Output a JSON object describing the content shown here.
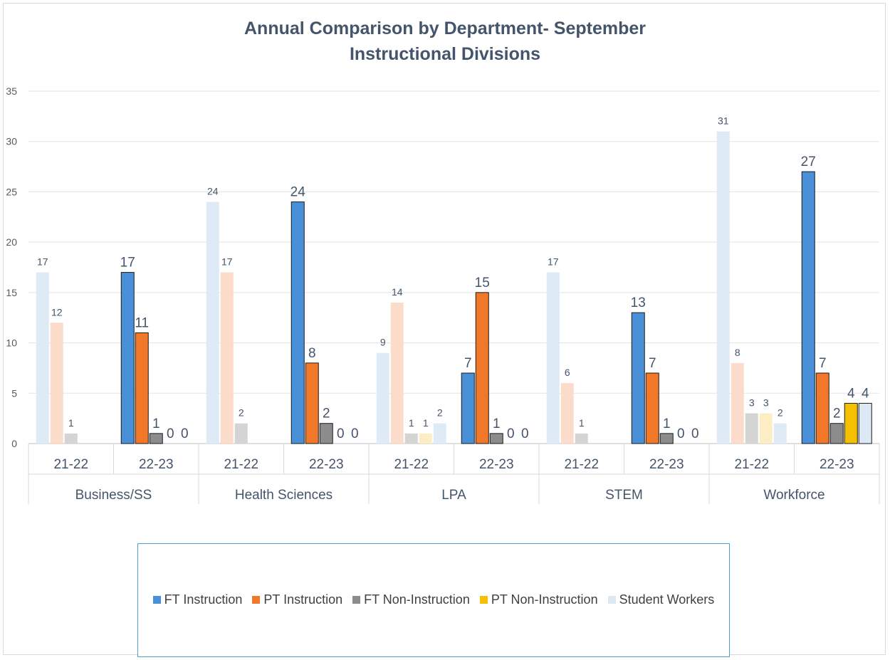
{
  "chart_data": {
    "type": "bar",
    "title": "Annual Comparison by Department- September",
    "subtitle": "Instructional Divisions",
    "ylim": [
      0,
      35
    ],
    "yticks": [
      0,
      5,
      10,
      15,
      20,
      25,
      30,
      35
    ],
    "grid": true,
    "legend_position": "bottom",
    "departments": [
      "Business/SS",
      "Health Sciences",
      "LPA",
      "STEM",
      "Workforce"
    ],
    "years": [
      "21-22",
      "22-23"
    ],
    "categories": [
      "Business/SS 21-22",
      "Business/SS 22-23",
      "Health Sciences 21-22",
      "Health Sciences 22-23",
      "LPA 21-22",
      "LPA 22-23",
      "STEM 21-22",
      "STEM 22-23",
      "Workforce 21-22",
      "Workforce 22-23"
    ],
    "series": [
      {
        "name": "FT Instruction",
        "color": "#4a90d9",
        "values": [
          null,
          17,
          null,
          24,
          null,
          7,
          null,
          13,
          null,
          27
        ]
      },
      {
        "name": "PT Instruction",
        "color": "#f07828",
        "values": [
          null,
          11,
          null,
          8,
          null,
          15,
          null,
          7,
          null,
          7
        ]
      },
      {
        "name": "FT Non-Instruction",
        "color": "#8c8c8c",
        "values": [
          1,
          1,
          2,
          2,
          1,
          1,
          1,
          1,
          3,
          2
        ]
      },
      {
        "name": "PT Non-Instruction",
        "color": "#f5c000",
        "values": [
          null,
          0,
          null,
          0,
          1,
          0,
          null,
          0,
          3,
          4
        ]
      },
      {
        "name": "Student Workers",
        "color": "#dce9f5",
        "values": [
          null,
          0,
          null,
          0,
          2,
          0,
          null,
          0,
          2,
          4
        ]
      }
    ],
    "faded_series_21_22": [
      {
        "name": "FT Instruction",
        "values": [
          17,
          24,
          9,
          17,
          31
        ]
      },
      {
        "name": "PT Instruction",
        "values": [
          12,
          17,
          14,
          6,
          8
        ]
      }
    ],
    "colors": {
      "ft_instruction": "#4a90d9",
      "pt_instruction": "#f07828",
      "ft_non_instruction": "#8c8c8c",
      "pt_non_instruction": "#f5c000",
      "student_workers": "#dce9f5",
      "faded_blue": "#deeaf6",
      "faded_orange": "#fbdccb",
      "faded_gray": "#d4d4d4",
      "faded_yellow": "#fdedc4",
      "text": "#44546a"
    }
  },
  "legend": {
    "items": [
      {
        "label": "FT Instruction",
        "color": "#4a90d9"
      },
      {
        "label": "PT Instruction",
        "color": "#f07828"
      },
      {
        "label": "FT Non-Instruction",
        "color": "#8c8c8c"
      },
      {
        "label": "PT Non-Instruction",
        "color": "#f5c000"
      },
      {
        "label": "Student Workers",
        "color": "#dce9f5"
      }
    ]
  }
}
